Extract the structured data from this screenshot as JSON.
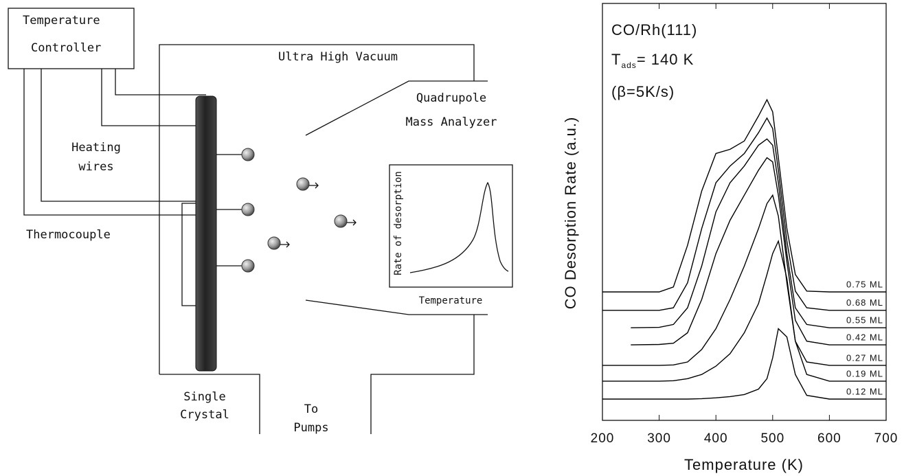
{
  "diagram": {
    "controller": [
      "Temperature",
      "Controller"
    ],
    "chamber": "Ultra High Vacuum",
    "analyzer": [
      "Quadrupole",
      "Mass Analyzer"
    ],
    "heating": [
      "Heating",
      "wires"
    ],
    "thermocouple": "Thermocouple",
    "crystal": [
      "Single",
      "Crystal"
    ],
    "pumps": [
      "To",
      "Pumps"
    ],
    "inset_ylabel": "Rate of desorption",
    "inset_xlabel": "Temperature"
  },
  "chart_data": {
    "type": "line",
    "annotations": [
      "CO/Rh(111)",
      "(β=5K/s)"
    ],
    "tads": {
      "symbol": "T",
      "subscript": "ads",
      "text": "= 140 K"
    },
    "xlabel": "Temperature (K)",
    "ylabel": "CO Desorption Rate (a.u.)",
    "x": [
      200,
      250,
      300,
      325,
      350,
      375,
      400,
      425,
      450,
      475,
      490,
      500,
      510,
      525,
      540,
      560,
      600,
      650,
      700
    ],
    "xlim": [
      200,
      700
    ],
    "xticks": [
      200,
      300,
      400,
      500,
      600,
      700
    ],
    "ylim": [
      0,
      100
    ],
    "series": [
      {
        "name": "0.75 ML",
        "color": "#000000",
        "values": [
          30.8,
          30.8,
          30.8,
          32,
          42,
          55,
          64,
          65,
          67,
          73,
          76.9,
          74,
          63,
          46,
          35,
          31,
          30.8,
          30.8,
          30.8
        ]
      },
      {
        "name": "0.68 ML",
        "color": "#000000",
        "values": [
          26.4,
          26.4,
          26.4,
          27,
          33,
          46,
          57,
          61,
          64,
          69,
          72.5,
          70,
          60,
          43,
          31,
          27,
          26.4,
          26.4,
          26.4
        ]
      },
      {
        "name": "0.55 ML",
        "color": "#000000",
        "values": [
          null,
          22.2,
          22.3,
          23,
          27,
          37,
          50,
          57,
          61,
          66,
          67.5,
          66,
          57,
          40,
          27,
          23,
          22.2,
          22.2,
          22.2
        ]
      },
      {
        "name": "0.42 ML",
        "color": "#000000",
        "values": [
          null,
          18.1,
          18.2,
          18.5,
          21,
          29,
          40,
          48,
          54,
          60,
          63,
          62,
          54,
          38,
          24,
          19,
          18.1,
          18.1,
          18.1
        ]
      },
      {
        "name": "0.27 ML",
        "color": "#000000",
        "values": [
          13.2,
          13.2,
          13.2,
          13.3,
          14,
          17,
          22,
          29,
          37,
          46,
          52,
          54,
          49,
          33,
          19,
          14,
          13.2,
          13.2,
          13.2
        ]
      },
      {
        "name": "0.19 ML",
        "color": "#000000",
        "values": [
          9.4,
          9.4,
          9.4,
          9.5,
          10,
          11,
          13,
          16,
          21,
          28,
          35,
          40,
          43,
          34,
          19,
          11,
          9.4,
          9.4,
          9.4
        ]
      },
      {
        "name": "0.12 ML",
        "color": "#000000",
        "values": [
          5.1,
          5.1,
          5.1,
          5.1,
          5.1,
          5.2,
          5.4,
          5.7,
          6.2,
          7.5,
          10,
          15,
          22,
          20,
          11,
          6,
          5.1,
          5.1,
          5.1
        ]
      }
    ]
  }
}
